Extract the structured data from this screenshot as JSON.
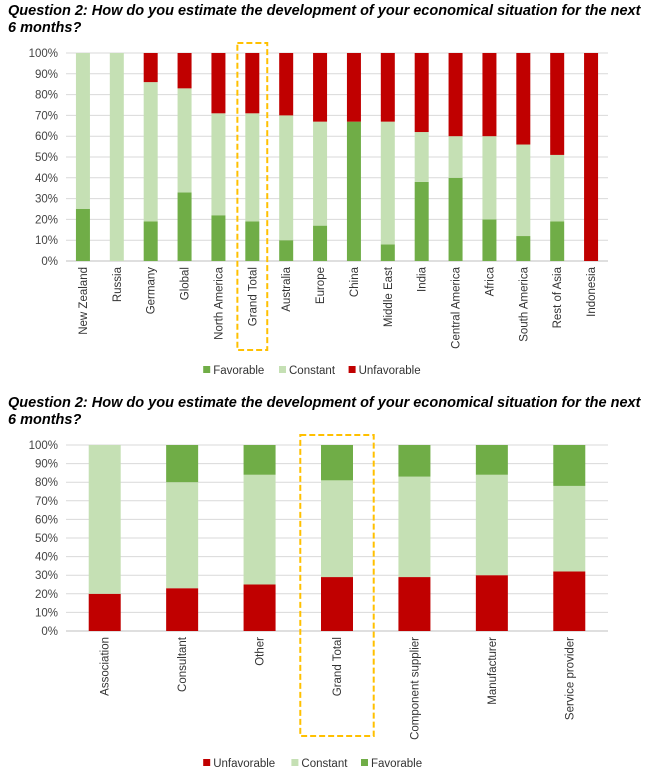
{
  "charts": [
    {
      "question": "Question 2: How do you estimate the development of your economical situation for the next 6 months?"
    },
    {
      "question": "Question 2: How do you estimate the development of your economical situation for the next 6 months?"
    }
  ],
  "colors": {
    "Favorable": "#70ad47",
    "Constant": "#c5e0b4",
    "Unfavorable": "#c00000",
    "highlight": "#ffc000",
    "grid": "#d9d9d9"
  },
  "chart_data": [
    {
      "type": "bar",
      "stacked": true,
      "title": "Question 2: How do you estimate the development of your economical situation for the next 6 months?",
      "categories": [
        "New Zealand",
        "Russia",
        "Germany",
        "Global",
        "North America",
        "Grand Total",
        "Australia",
        "Europe",
        "China",
        "Middle East",
        "India",
        "Central America",
        "Africa",
        "South America",
        "Rest of Asia",
        "Indonesia"
      ],
      "series": [
        {
          "name": "Favorable",
          "values": [
            25,
            0,
            19,
            33,
            22,
            19,
            10,
            17,
            67,
            8,
            38,
            40,
            20,
            12,
            19,
            0
          ]
        },
        {
          "name": "Constant",
          "values": [
            75,
            100,
            67,
            50,
            49,
            52,
            60,
            50,
            0,
            59,
            24,
            20,
            40,
            44,
            32,
            0
          ]
        },
        {
          "name": "Unfavorable",
          "values": [
            0,
            0,
            14,
            17,
            29,
            29,
            30,
            33,
            33,
            33,
            38,
            40,
            40,
            44,
            49,
            100
          ]
        }
      ],
      "yticks": [
        "0%",
        "10%",
        "20%",
        "30%",
        "40%",
        "50%",
        "60%",
        "70%",
        "80%",
        "90%",
        "100%"
      ],
      "ylim": [
        0,
        100
      ],
      "highlight": "Grand Total",
      "legend_order": [
        "Favorable",
        "Constant",
        "Unfavorable"
      ],
      "legend_position": "bottom",
      "grid": true
    },
    {
      "type": "bar",
      "stacked": true,
      "title": "Question 2: How do you estimate the development of your economical situation for the next 6 months?",
      "categories": [
        "Association",
        "Consultant",
        "Other",
        "Grand Total",
        "Component supplier",
        "Manufacturer",
        "Service provider"
      ],
      "series": [
        {
          "name": "Unfavorable",
          "values": [
            20,
            23,
            25,
            29,
            29,
            30,
            32
          ]
        },
        {
          "name": "Constant",
          "values": [
            80,
            57,
            59,
            52,
            54,
            54,
            46
          ]
        },
        {
          "name": "Favorable",
          "values": [
            0,
            20,
            16,
            19,
            17,
            16,
            22
          ]
        }
      ],
      "yticks": [
        "0%",
        "10%",
        "20%",
        "30%",
        "40%",
        "50%",
        "60%",
        "70%",
        "80%",
        "90%",
        "100%"
      ],
      "ylim": [
        0,
        100
      ],
      "highlight": "Grand Total",
      "legend_order": [
        "Unfavorable",
        "Constant",
        "Favorable"
      ],
      "legend_position": "bottom",
      "grid": true
    }
  ]
}
